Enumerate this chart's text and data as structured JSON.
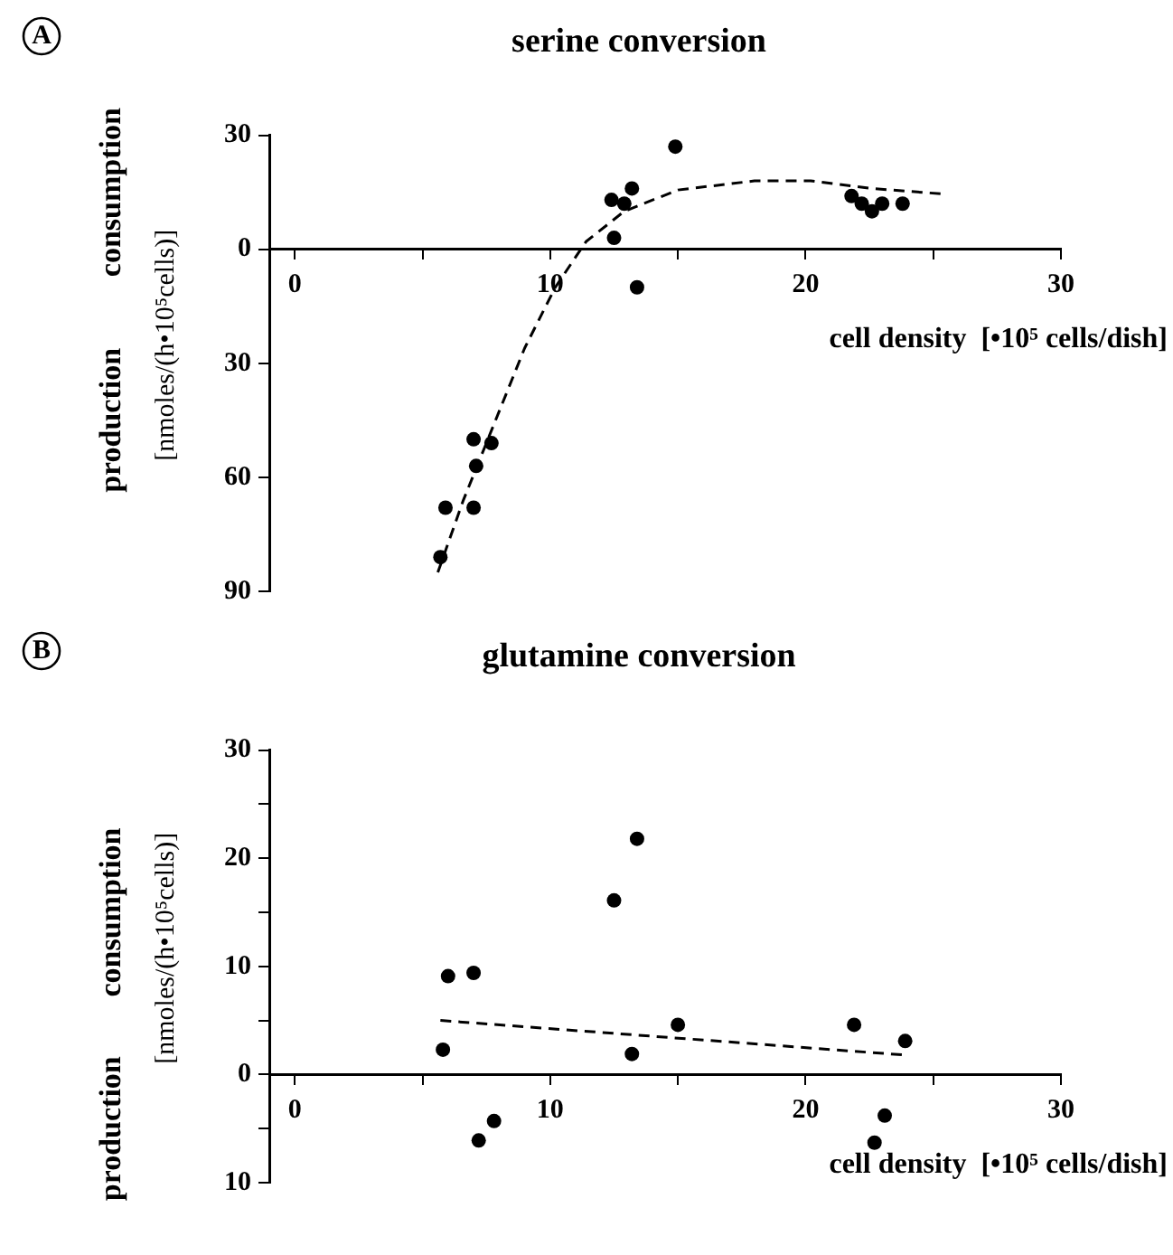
{
  "chart_data": [
    {
      "type": "scatter",
      "title": "serine conversion",
      "xlabel": "cell density  [•10⁵ cells/dish]",
      "ylabel": "[nmoles/(h•10⁵cells)]",
      "annotations": [
        "A",
        "consumption",
        "production"
      ],
      "xlim": [
        -1,
        30
      ],
      "xticks": [
        0,
        {
          "value": 5,
          "label": null
        },
        10,
        {
          "value": 15,
          "label": null
        },
        20,
        {
          "value": 25,
          "label": null
        },
        30
      ],
      "ylim": [
        -90,
        30
      ],
      "yticks": [
        {
          "value": -90,
          "label": "90"
        },
        {
          "value": -60,
          "label": "60"
        },
        {
          "value": -30,
          "label": "30"
        },
        0,
        30
      ],
      "series": [
        {
          "type": "scatter",
          "color": "#000000",
          "marker": "circle",
          "x": [
            5.9,
            5.7,
            7.0,
            7.1,
            7.0,
            7.7,
            12.4,
            12.5,
            12.9,
            13.2,
            13.4,
            14.9,
            21.8,
            22.2,
            22.6,
            23.0,
            23.8
          ],
          "values": [
            -68,
            -81,
            -50,
            -57,
            -68,
            -51,
            13,
            3,
            12,
            16,
            -10,
            27,
            14,
            12,
            10,
            12,
            12
          ]
        },
        {
          "type": "line",
          "color": "#000000",
          "line_style": "dashed",
          "marker": "none",
          "x": [
            5.6,
            6.6,
            7.8,
            9.0,
            10.2,
            11.4,
            12.9,
            15.0,
            18.0,
            20.2,
            22.6,
            25.3
          ],
          "values": [
            -85,
            -66,
            -46,
            -26,
            -10,
            2,
            10,
            15.6,
            18,
            18,
            16,
            14.6
          ]
        }
      ]
    },
    {
      "type": "scatter",
      "title": "glutamine conversion",
      "xlabel": "cell density  [•10⁵ cells/dish]",
      "ylabel": "[nmoles/(h•10⁵cells)]",
      "annotations": [
        "B",
        "consumption",
        "production"
      ],
      "xlim": [
        -1,
        30
      ],
      "xticks": [
        0,
        {
          "value": 5,
          "label": null
        },
        10,
        {
          "value": 15,
          "label": null
        },
        20,
        {
          "value": 25,
          "label": null
        },
        30
      ],
      "ylim": [
        -10,
        30
      ],
      "yticks": [
        {
          "value": -10,
          "label": "10"
        },
        {
          "value": -5,
          "label": null
        },
        0,
        {
          "value": 5,
          "label": null
        },
        10,
        {
          "value": 15,
          "label": null
        },
        20,
        {
          "value": 25,
          "label": null
        },
        30
      ],
      "series": [
        {
          "type": "scatter",
          "color": "#000000",
          "marker": "circle",
          "x": [
            6.0,
            7.0,
            5.8,
            7.2,
            7.8,
            12.5,
            13.4,
            13.2,
            15.0,
            21.9,
            23.9,
            23.1,
            22.7
          ],
          "values": [
            9.1,
            9.4,
            2.3,
            -6.1,
            -4.3,
            16.1,
            21.8,
            1.9,
            4.6,
            4.6,
            3.1,
            -3.8,
            -6.3
          ]
        },
        {
          "type": "line",
          "color": "#000000",
          "line_style": "dashed",
          "marker": "none",
          "x": [
            5.7,
            23.9
          ],
          "values": [
            5.0,
            1.8
          ]
        }
      ]
    }
  ]
}
